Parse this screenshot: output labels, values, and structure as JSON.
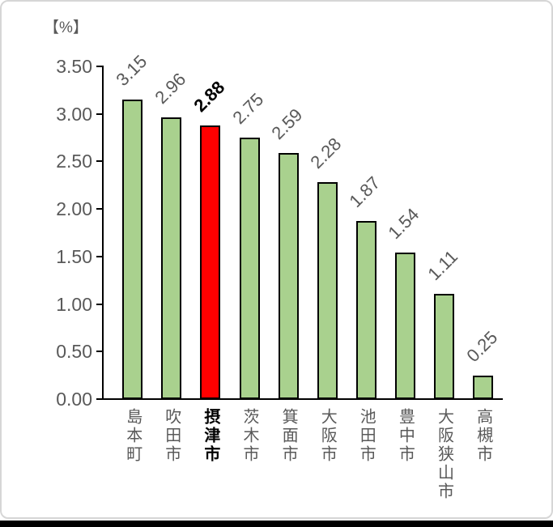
{
  "window": {
    "background_color": "#ffffff",
    "card_border_color": "#d6d6d6",
    "bottom_bar_color": "#000000"
  },
  "chart_data": {
    "type": "bar",
    "unit_label": "【%】",
    "categories": [
      "島本町",
      "吹田市",
      "摂津市",
      "茨木市",
      "箕面市",
      "大阪市",
      "池田市",
      "豊中市",
      "大阪狭山市",
      "高槻市"
    ],
    "values": [
      3.15,
      2.96,
      2.88,
      2.75,
      2.59,
      2.28,
      1.87,
      1.54,
      1.11,
      0.25
    ],
    "value_labels": [
      "3.15",
      "2.96",
      "2.88",
      "2.75",
      "2.59",
      "2.28",
      "1.87",
      "1.54",
      "1.11",
      "0.25"
    ],
    "highlighted_category": "摂津市",
    "highlighted_value_label": "2.88",
    "highlight_index": 2,
    "y_ticks": [
      "3.50",
      "3.00",
      "2.50",
      "2.00",
      "1.50",
      "1.00",
      "0.50",
      "0.00"
    ],
    "ylim": [
      0,
      3.5
    ],
    "xlabel": "",
    "ylabel": "",
    "title": "",
    "grid": false,
    "legend": "none",
    "x_label_orientation": "vertical",
    "value_label_rotation_deg": -45,
    "bar_color": "#a9d18e",
    "highlight_color": "#ff0000",
    "bar_border_color": "#000000",
    "axis_color": "#000000",
    "label_color": "#595959",
    "highlight_label_color": "#000000"
  }
}
